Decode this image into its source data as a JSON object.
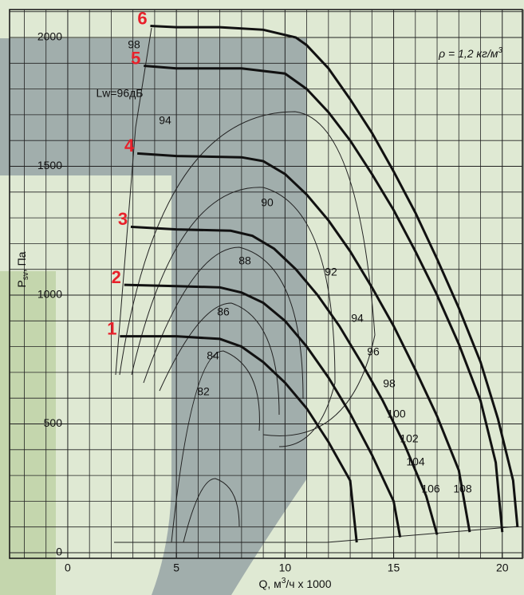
{
  "chart_data": {
    "type": "line",
    "xlabel": {
      "main": "Q, м",
      "sup": "3",
      "rest": "/ч x 1000"
    },
    "ylabel": {
      "main": "P",
      "sub": "sv",
      "rest": ", Па"
    },
    "density": {
      "main": "ρ = 1,2 кг/м",
      "sup": "3"
    },
    "xlim": [
      -2.7,
      21
    ],
    "ylim": [
      0,
      2100
    ],
    "xticks": [
      0,
      5,
      10,
      15,
      20
    ],
    "yticks": [
      0,
      500,
      1000,
      1500,
      2000
    ],
    "xminor": [
      -2,
      -1,
      1,
      2,
      3,
      4,
      6,
      7,
      8,
      9,
      11,
      12,
      13,
      14,
      16,
      17,
      18,
      19,
      21
    ],
    "yminor": [
      100,
      200,
      300,
      400,
      600,
      700,
      800,
      900,
      1100,
      1200,
      1300,
      1400,
      1600,
      1700,
      1800,
      1900,
      2100
    ],
    "grid": true,
    "label_color": "#e8202a",
    "series": [
      {
        "name": "1",
        "color": "#111111",
        "x": [
          2.4,
          5,
          7,
          8,
          9,
          10,
          11,
          12,
          13,
          13.3
        ],
        "values": [
          840,
          840,
          830,
          800,
          740,
          660,
          560,
          430,
          280,
          40
        ]
      },
      {
        "name": "2",
        "color": "#111111",
        "x": [
          2.6,
          5,
          7,
          8,
          9,
          10,
          11,
          12,
          13,
          14,
          15,
          15.3
        ],
        "values": [
          1040,
          1035,
          1030,
          1010,
          970,
          900,
          800,
          680,
          540,
          380,
          200,
          60
        ]
      },
      {
        "name": "3",
        "color": "#111111",
        "x": [
          2.9,
          5,
          7.5,
          8.5,
          9.5,
          10.5,
          11.5,
          12.5,
          13.5,
          14.5,
          15.5,
          16.5,
          17
        ],
        "values": [
          1265,
          1255,
          1250,
          1230,
          1180,
          1100,
          1000,
          880,
          740,
          590,
          420,
          220,
          70
        ]
      },
      {
        "name": "4",
        "color": "#111111",
        "x": [
          3.2,
          5,
          8,
          9,
          10,
          11,
          12,
          13,
          14,
          15,
          16,
          17,
          18,
          18.5
        ],
        "values": [
          1550,
          1540,
          1535,
          1520,
          1470,
          1390,
          1290,
          1170,
          1030,
          880,
          710,
          530,
          320,
          80
        ]
      },
      {
        "name": "5",
        "color": "#111111",
        "x": [
          3.5,
          5,
          8,
          10,
          11,
          12,
          13,
          14,
          15,
          16,
          17,
          18,
          19,
          19.7,
          20
        ],
        "values": [
          1890,
          1880,
          1880,
          1860,
          1800,
          1710,
          1600,
          1470,
          1330,
          1170,
          1000,
          810,
          590,
          350,
          80
        ]
      },
      {
        "name": "6",
        "color": "#111111",
        "x": [
          3.8,
          5,
          7,
          9,
          10.5,
          11,
          12,
          13,
          14,
          15,
          16,
          17,
          18,
          19,
          19.8,
          20.5,
          20.7
        ],
        "values": [
          2045,
          2040,
          2040,
          2030,
          2000,
          1970,
          1880,
          1760,
          1630,
          1480,
          1320,
          1140,
          950,
          740,
          520,
          280,
          100
        ]
      }
    ],
    "annotations": [
      "98",
      "Lw=96дБ",
      "94",
      "90",
      "88",
      "86",
      "84",
      "82",
      "92",
      "94",
      "96",
      "98",
      "100",
      "102",
      "104",
      "106",
      "108"
    ]
  }
}
